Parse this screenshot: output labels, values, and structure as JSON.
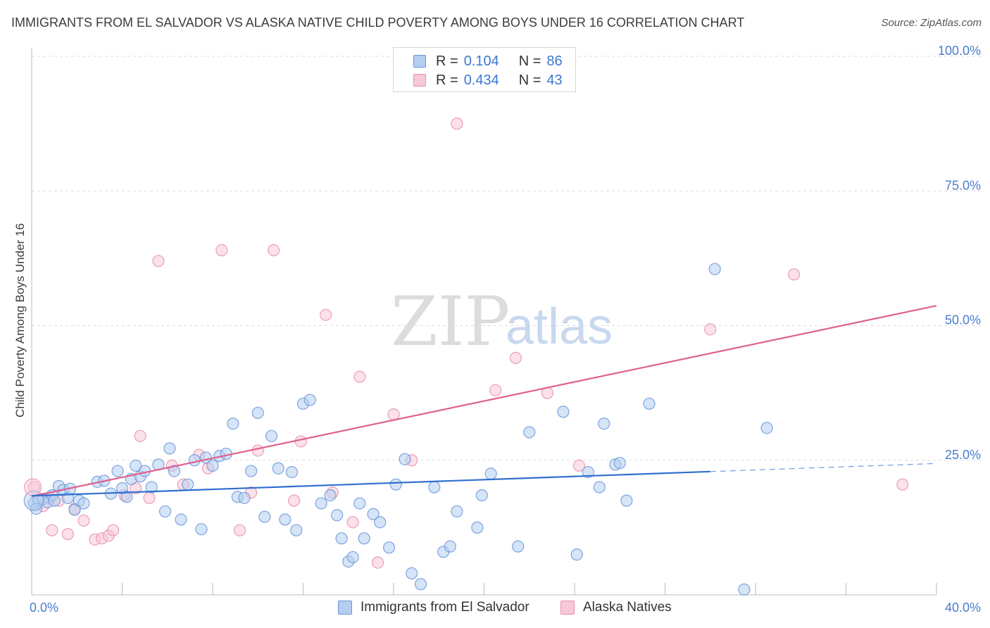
{
  "title": "IMMIGRANTS FROM EL SALVADOR VS ALASKA NATIVE CHILD POVERTY AMONG BOYS UNDER 16 CORRELATION CHART",
  "source": "Source: ZipAtlas.com",
  "watermark": {
    "zip": "ZIP",
    "atlas": "atlas"
  },
  "legend_stats": [
    {
      "r_label": "R =",
      "r_value": "0.104",
      "n_label": "N =",
      "n_value": "86"
    },
    {
      "r_label": "R =",
      "r_value": "0.434",
      "n_label": "N =",
      "n_value": "43"
    }
  ],
  "colors": {
    "blue": "#6a96d8",
    "blue_fill": "#b4cdf0",
    "blue_line": "#2f6fcf",
    "pink": "#e890ac",
    "pink_fill": "#f7c8d6",
    "pink_line": "#e0608e",
    "tick_text": "#4a7ccf",
    "grid": "#dddddd"
  },
  "chart_data": {
    "type": "scatter",
    "title": "IMMIGRANTS FROM EL SALVADOR VS ALASKA NATIVE CHILD POVERTY AMONG BOYS UNDER 16 CORRELATION CHART",
    "xlabel": "",
    "ylabel": "Child Poverty Among Boys Under 16",
    "xlim": [
      0,
      40
    ],
    "ylim": [
      0,
      100
    ],
    "x_tick_labels": [
      "0.0%",
      "40.0%"
    ],
    "y_ticks": [
      25,
      50,
      75,
      100
    ],
    "y_tick_labels": [
      "25.0%",
      "50.0%",
      "75.0%",
      "100.0%"
    ],
    "grid": true,
    "legend_position": "bottom",
    "series": [
      {
        "name": "Immigrants from El Salvador",
        "color": "#6a96d8",
        "trend": {
          "x": [
            0,
            30
          ],
          "y": [
            18.4,
            22.9
          ],
          "dashed_to": [
            40,
            24.4
          ]
        },
        "points": [
          [
            0.1,
            17.0
          ],
          [
            0.3,
            17.5
          ],
          [
            0.5,
            17.8
          ],
          [
            0.7,
            17.2
          ],
          [
            0.9,
            18.5
          ],
          [
            1.2,
            20.2
          ],
          [
            1.4,
            19.5
          ],
          [
            1.6,
            18.0
          ],
          [
            1.7,
            19.7
          ],
          [
            1.9,
            15.8
          ],
          [
            2.1,
            17.5
          ],
          [
            2.3,
            17.0
          ],
          [
            2.9,
            21.0
          ],
          [
            3.2,
            21.2
          ],
          [
            3.5,
            18.8
          ],
          [
            3.8,
            23.0
          ],
          [
            4.0,
            19.8
          ],
          [
            4.2,
            18.2
          ],
          [
            4.4,
            21.5
          ],
          [
            4.6,
            24.0
          ],
          [
            4.8,
            22.0
          ],
          [
            5.0,
            23.0
          ],
          [
            5.3,
            20.0
          ],
          [
            5.6,
            24.2
          ],
          [
            5.9,
            15.5
          ],
          [
            6.1,
            27.2
          ],
          [
            6.3,
            23.0
          ],
          [
            6.6,
            14.0
          ],
          [
            6.9,
            20.5
          ],
          [
            7.2,
            25.0
          ],
          [
            7.5,
            12.2
          ],
          [
            7.7,
            25.5
          ],
          [
            8.0,
            24.0
          ],
          [
            8.3,
            25.8
          ],
          [
            8.6,
            26.2
          ],
          [
            8.9,
            31.8
          ],
          [
            9.1,
            18.2
          ],
          [
            9.4,
            18.0
          ],
          [
            9.7,
            23.0
          ],
          [
            10.0,
            33.8
          ],
          [
            10.3,
            14.5
          ],
          [
            10.6,
            29.5
          ],
          [
            10.9,
            23.5
          ],
          [
            11.2,
            14.0
          ],
          [
            11.5,
            22.8
          ],
          [
            11.7,
            12.0
          ],
          [
            12.0,
            35.5
          ],
          [
            12.3,
            36.2
          ],
          [
            12.8,
            17.0
          ],
          [
            13.2,
            18.5
          ],
          [
            13.5,
            14.8
          ],
          [
            13.7,
            10.5
          ],
          [
            14.0,
            6.2
          ],
          [
            14.2,
            7.0
          ],
          [
            14.5,
            17.0
          ],
          [
            14.7,
            10.5
          ],
          [
            15.1,
            15.0
          ],
          [
            15.4,
            13.5
          ],
          [
            15.8,
            8.8
          ],
          [
            16.1,
            20.5
          ],
          [
            16.5,
            25.2
          ],
          [
            16.8,
            4.0
          ],
          [
            17.2,
            2.0
          ],
          [
            17.8,
            20.0
          ],
          [
            18.2,
            8.0
          ],
          [
            18.5,
            9.0
          ],
          [
            18.8,
            15.5
          ],
          [
            19.7,
            12.5
          ],
          [
            19.9,
            18.5
          ],
          [
            20.3,
            22.5
          ],
          [
            21.5,
            9.0
          ],
          [
            22.0,
            30.2
          ],
          [
            23.5,
            34.0
          ],
          [
            24.1,
            7.5
          ],
          [
            24.6,
            22.8
          ],
          [
            25.1,
            20.0
          ],
          [
            25.3,
            31.8
          ],
          [
            25.8,
            24.2
          ],
          [
            26.0,
            24.5
          ],
          [
            26.3,
            17.5
          ],
          [
            27.3,
            35.5
          ],
          [
            30.2,
            60.5
          ],
          [
            31.5,
            1.0
          ],
          [
            32.5,
            31.0
          ],
          [
            0.2,
            16.0
          ],
          [
            1.0,
            17.5
          ]
        ]
      },
      {
        "name": "Alaska Natives",
        "color": "#e890ac",
        "trend": {
          "x": [
            0,
            40
          ],
          "y": [
            18.3,
            53.7
          ]
        },
        "points": [
          [
            0.1,
            20.0
          ],
          [
            0.5,
            16.5
          ],
          [
            0.8,
            18.0
          ],
          [
            0.9,
            12.0
          ],
          [
            1.2,
            17.5
          ],
          [
            1.6,
            11.3
          ],
          [
            1.9,
            16.0
          ],
          [
            2.3,
            13.8
          ],
          [
            2.8,
            10.3
          ],
          [
            3.1,
            10.5
          ],
          [
            3.4,
            11.0
          ],
          [
            3.6,
            12.0
          ],
          [
            4.1,
            18.5
          ],
          [
            4.6,
            19.8
          ],
          [
            4.8,
            29.5
          ],
          [
            5.2,
            18.0
          ],
          [
            5.6,
            62.0
          ],
          [
            6.2,
            24.0
          ],
          [
            6.7,
            20.5
          ],
          [
            7.4,
            26.0
          ],
          [
            7.8,
            23.5
          ],
          [
            8.4,
            64.0
          ],
          [
            9.2,
            12.0
          ],
          [
            9.7,
            19.0
          ],
          [
            10.0,
            26.8
          ],
          [
            10.7,
            64.0
          ],
          [
            11.6,
            17.5
          ],
          [
            11.9,
            28.5
          ],
          [
            13.0,
            52.0
          ],
          [
            13.3,
            19.0
          ],
          [
            14.2,
            13.5
          ],
          [
            14.5,
            40.5
          ],
          [
            15.3,
            6.0
          ],
          [
            16.0,
            33.5
          ],
          [
            16.8,
            25.0
          ],
          [
            18.8,
            87.5
          ],
          [
            20.5,
            38.0
          ],
          [
            21.4,
            44.0
          ],
          [
            22.8,
            37.5
          ],
          [
            24.2,
            24.0
          ],
          [
            30.0,
            49.3
          ],
          [
            33.7,
            59.5
          ],
          [
            38.5,
            20.5
          ]
        ]
      }
    ]
  },
  "legend": [
    {
      "label": "Immigrants from El Salvador",
      "swatch": "blue"
    },
    {
      "label": "Alaska Natives",
      "swatch": "pink"
    }
  ]
}
